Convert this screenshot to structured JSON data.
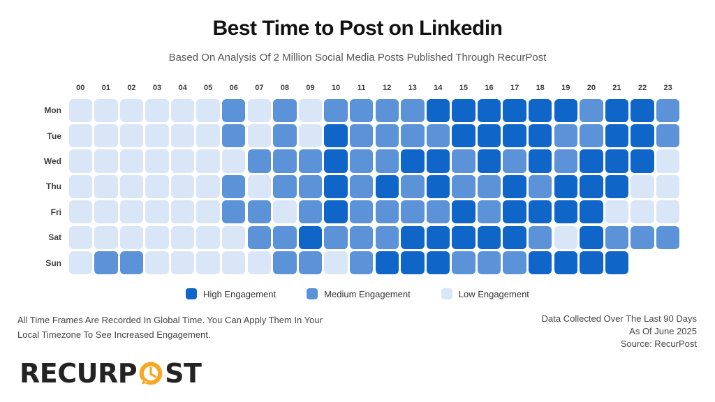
{
  "title": "Best Time to Post on Linkedin",
  "subtitle": "Based On Analysis Of 2 Million Social Media Posts Published Through RecurPost",
  "chart_data": {
    "type": "heatmap",
    "x_label_desc": "Hour of day (24h, global time)",
    "x_labels": [
      "00",
      "01",
      "02",
      "03",
      "04",
      "05",
      "06",
      "07",
      "08",
      "09",
      "10",
      "11",
      "12",
      "13",
      "14",
      "15",
      "16",
      "17",
      "18",
      "19",
      "20",
      "21",
      "22",
      "23"
    ],
    "y_labels": [
      "Mon",
      "Tue",
      "Wed",
      "Thu",
      "Fri",
      "Sat",
      "Sun"
    ],
    "value_key": {
      "H": "High Engagement",
      "M": "Medium Engagement",
      "L": "Low Engagement",
      "N": "No cell"
    },
    "rows": [
      {
        "day": "Mon",
        "values": [
          "L",
          "L",
          "L",
          "L",
          "L",
          "L",
          "M",
          "L",
          "M",
          "L",
          "M",
          "M",
          "M",
          "M",
          "H",
          "H",
          "H",
          "H",
          "H",
          "H",
          "M",
          "H",
          "H",
          "M"
        ]
      },
      {
        "day": "Tue",
        "values": [
          "L",
          "L",
          "L",
          "L",
          "L",
          "L",
          "M",
          "L",
          "M",
          "L",
          "H",
          "M",
          "M",
          "M",
          "M",
          "H",
          "H",
          "H",
          "H",
          "M",
          "M",
          "H",
          "H",
          "M"
        ]
      },
      {
        "day": "Wed",
        "values": [
          "L",
          "L",
          "L",
          "L",
          "L",
          "L",
          "L",
          "M",
          "M",
          "M",
          "H",
          "M",
          "M",
          "H",
          "H",
          "M",
          "H",
          "M",
          "H",
          "M",
          "H",
          "H",
          "H",
          "L"
        ]
      },
      {
        "day": "Thu",
        "values": [
          "L",
          "L",
          "L",
          "L",
          "L",
          "L",
          "M",
          "L",
          "M",
          "M",
          "H",
          "M",
          "H",
          "M",
          "H",
          "M",
          "M",
          "H",
          "M",
          "H",
          "H",
          "H",
          "L",
          "L"
        ]
      },
      {
        "day": "Fri",
        "values": [
          "L",
          "L",
          "L",
          "L",
          "L",
          "L",
          "M",
          "M",
          "L",
          "M",
          "H",
          "M",
          "M",
          "M",
          "M",
          "H",
          "M",
          "H",
          "H",
          "H",
          "H",
          "L",
          "L",
          "L"
        ]
      },
      {
        "day": "Sat",
        "values": [
          "L",
          "L",
          "L",
          "L",
          "L",
          "L",
          "L",
          "M",
          "M",
          "H",
          "M",
          "M",
          "M",
          "H",
          "H",
          "H",
          "H",
          "H",
          "M",
          "L",
          "H",
          "M",
          "M",
          "M"
        ]
      },
      {
        "day": "Sun",
        "values": [
          "L",
          "M",
          "M",
          "L",
          "L",
          "L",
          "L",
          "L",
          "M",
          "M",
          "L",
          "M",
          "H",
          "H",
          "H",
          "M",
          "M",
          "M",
          "H",
          "H",
          "H",
          "H",
          "N",
          "N"
        ]
      }
    ],
    "colors": {
      "H": "#1065c8",
      "M": "#5b92d8",
      "L": "#d9e6f8",
      "N": "transparent"
    },
    "legend": [
      {
        "key": "H",
        "label": "High Engagement"
      },
      {
        "key": "M",
        "label": "Medium Engagement"
      },
      {
        "key": "L",
        "label": "Low Engagement"
      }
    ],
    "legend_position": "bottom-center",
    "grid": "off"
  },
  "footnote_left": "All Time Frames Are Recorded In Global Time. You Can Apply Them In Your Local Timezone To See Increased Engagement.",
  "footnote_right_lines": [
    "Data Collected Over The Last 90 Days",
    "As Of June 2025",
    "Source: RecurPost"
  ],
  "logo": {
    "prefix": "RECURP",
    "suffix": "ST",
    "clock_color": "#f7a823",
    "text_color": "#232323"
  }
}
